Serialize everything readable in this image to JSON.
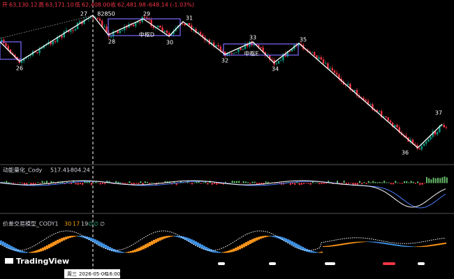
{
  "header": {
    "open_label": "开",
    "open": "63,130.12",
    "high_label": "高",
    "high": "63,171.10",
    "low_label": "低",
    "low": "62,408.00",
    "close_label": "收",
    "close": "62,481.98",
    "change": "-648.14 (-1.03%)"
  },
  "waves": [
    "26",
    "27",
    "28",
    "29",
    "30",
    "31",
    "32",
    "33",
    "34",
    "35",
    "36",
    "37"
  ],
  "peak_label": "82850",
  "hubs": [
    "中枢D",
    "中枢E"
  ],
  "indicator1": {
    "name": "动能量化_Cody",
    "values": [
      "517.41",
      "-804.24"
    ]
  },
  "indicator2": {
    "name": "价差交易模型_CODY1",
    "values": [
      "30",
      "17",
      "19"
    ],
    "symbols": [
      "∅",
      "∅",
      "∅",
      "∅"
    ]
  },
  "logo": "TradingView",
  "cursor": {
    "weekday": "周三",
    "date": "2026-05-06",
    "time": "16:00"
  }
}
